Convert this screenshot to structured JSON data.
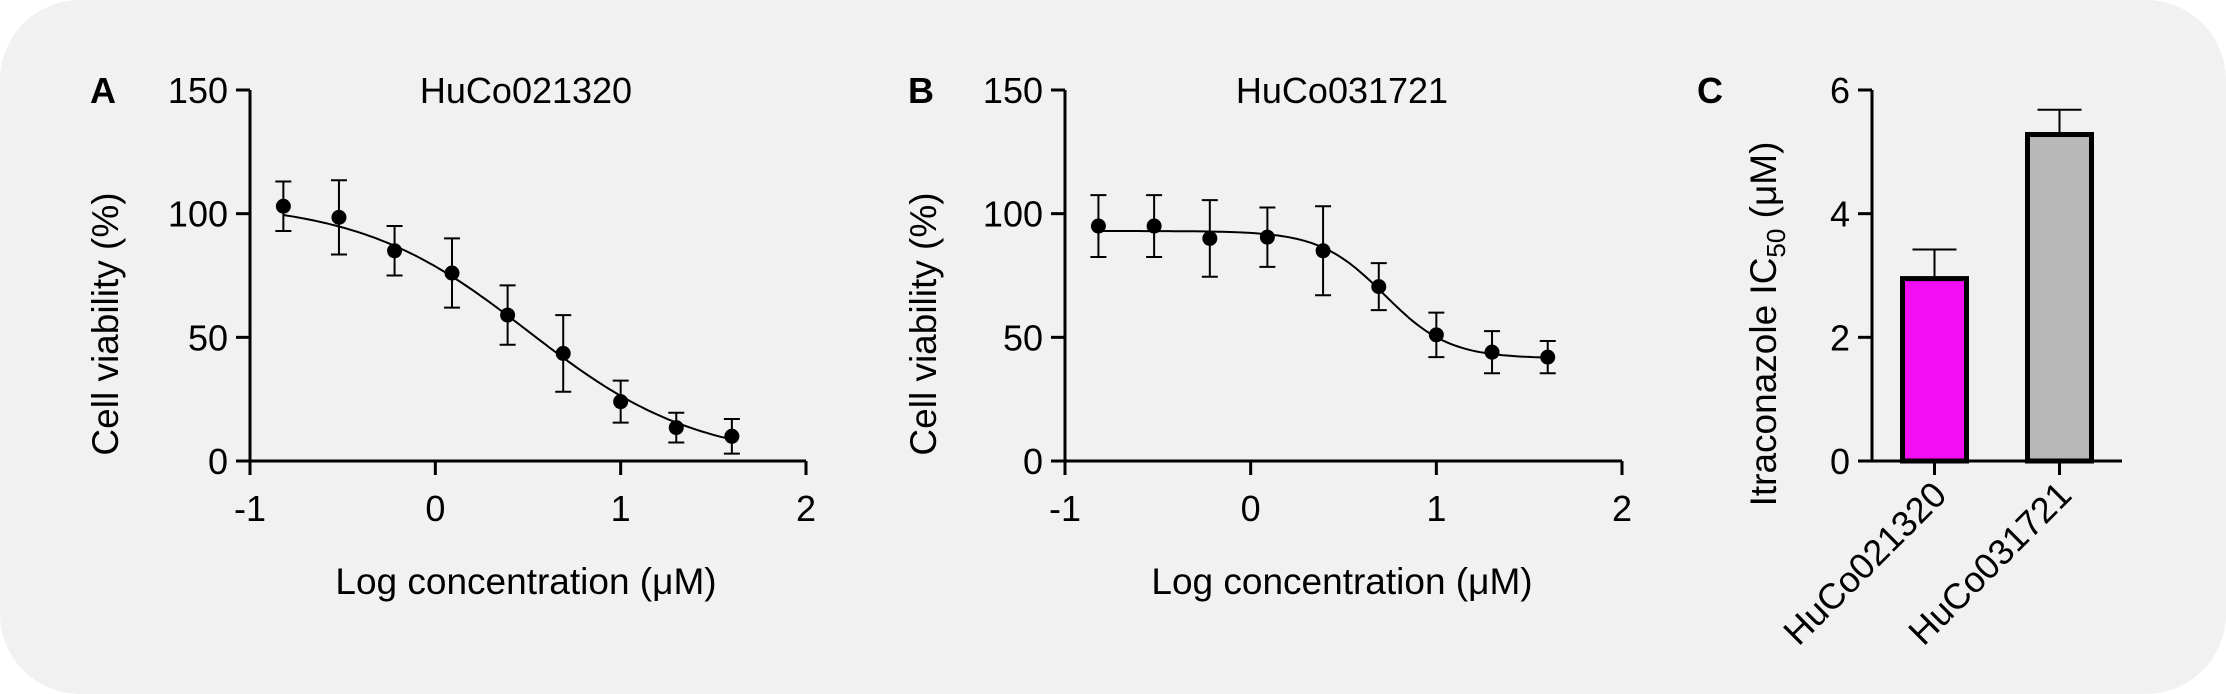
{
  "chart_data": [
    {
      "panel": "A",
      "type": "scatter",
      "title": "HuCo021320",
      "xlabel": "Log concentration (μM)",
      "ylabel": "Cell viability (%)",
      "xlim": [
        -1,
        2
      ],
      "ylim": [
        0,
        150
      ],
      "xticks": [
        -1,
        0,
        1,
        2
      ],
      "yticks": [
        0,
        50,
        100,
        150
      ],
      "x": [
        -0.82,
        -0.52,
        -0.22,
        0.09,
        0.39,
        0.69,
        1.0,
        1.3,
        1.6
      ],
      "y": [
        103,
        98.5,
        85,
        76,
        59,
        43.5,
        24,
        13.5,
        10
      ],
      "err": [
        10,
        15,
        10,
        14,
        12,
        15.5,
        8.5,
        6,
        7
      ],
      "fit": {
        "top": 105,
        "bottom": 0,
        "logIC50": 0.5,
        "hill": 0.95
      },
      "grid": false,
      "legend": false
    },
    {
      "panel": "B",
      "type": "scatter",
      "title": "HuCo031721",
      "xlabel": "Log concentration (μM)",
      "ylabel": "Cell viability (%)",
      "xlim": [
        -1,
        2
      ],
      "ylim": [
        0,
        150
      ],
      "xticks": [
        -1,
        0,
        1,
        2
      ],
      "yticks": [
        0,
        50,
        100,
        150
      ],
      "x": [
        -0.82,
        -0.52,
        -0.22,
        0.09,
        0.39,
        0.69,
        1.0,
        1.3,
        1.6
      ],
      "y": [
        95,
        95,
        90,
        90.5,
        85,
        70.5,
        51,
        44,
        42
      ],
      "err": [
        12.5,
        12.5,
        15.5,
        12,
        18,
        9.5,
        9,
        8.5,
        6.5
      ],
      "fit": {
        "top": 93,
        "bottom": 41.5,
        "logIC50": 0.72,
        "hill": 2.5
      },
      "grid": false,
      "legend": false
    },
    {
      "panel": "C",
      "type": "bar",
      "categories": [
        "HuCo021320",
        "HuCo031721"
      ],
      "values": [
        2.95,
        5.28
      ],
      "err": [
        0.47,
        0.4
      ],
      "colors": [
        "#f20ef2",
        "#b8b8b8"
      ],
      "ylabel_main": "Itraconazole IC",
      "ylabel_sub": "50",
      "ylabel_unit": " (μM)",
      "ylim": [
        0,
        6
      ],
      "yticks": [
        0,
        2,
        4,
        6
      ],
      "grid": false,
      "legend": false
    }
  ]
}
